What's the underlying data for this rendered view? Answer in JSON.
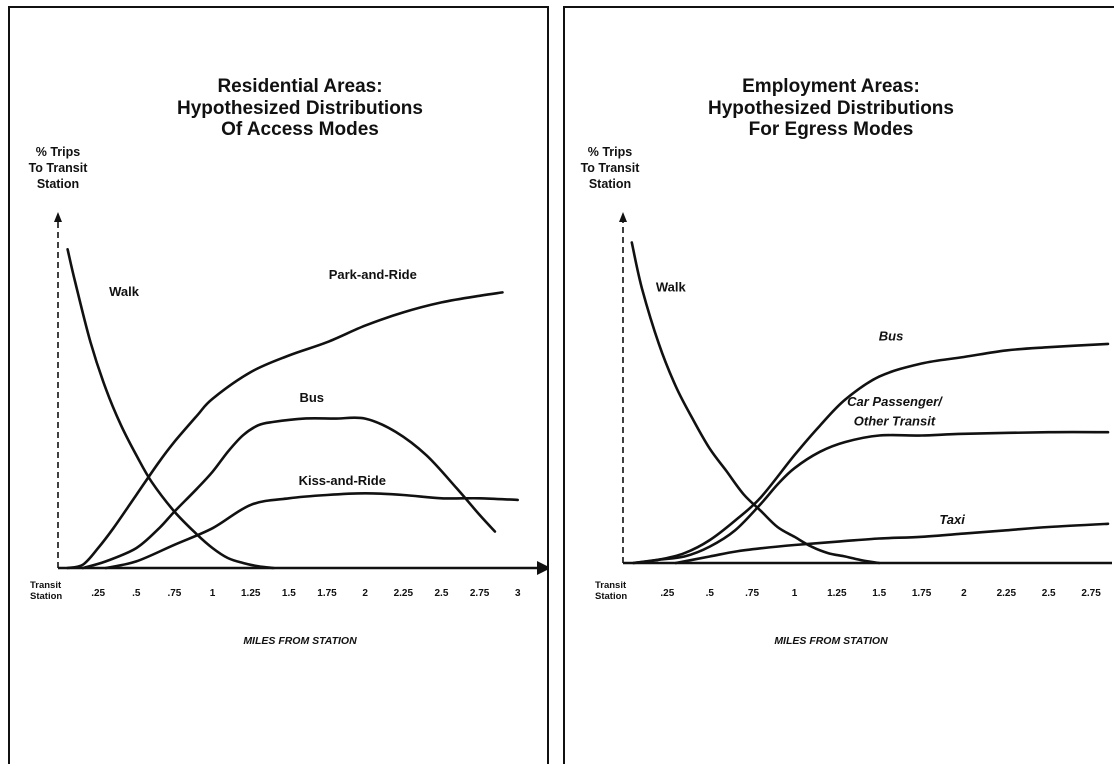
{
  "chart_data": [
    {
      "type": "line",
      "title": [
        "Residential Areas:",
        "Hypothesized Distributions",
        "Of Access Modes"
      ],
      "ylabel": [
        "% Trips",
        "To Transit",
        "Station"
      ],
      "xlabel": "MILES FROM STATION",
      "origin_label": [
        "Transit",
        "Station"
      ],
      "x_ticks": [
        0.25,
        0.5,
        0.75,
        1,
        1.25,
        1.5,
        1.75,
        2,
        2.25,
        2.5,
        2.75,
        3
      ],
      "x_tick_labels": [
        ".25",
        ".5",
        ".75",
        "1",
        "1.25",
        "1.5",
        "1.75",
        "2",
        "2.25",
        "2.5",
        "2.75",
        "3"
      ],
      "xlim": [
        0,
        3.1
      ],
      "ylim": [
        0,
        100
      ],
      "y_axis_style": "dashed",
      "grid": false,
      "legend": "labels placed next to curves",
      "series": [
        {
          "name": "Walk",
          "x": [
            0.05,
            0.1,
            0.2,
            0.3,
            0.4,
            0.5,
            0.6,
            0.75,
            0.9,
            1.0,
            1.1,
            1.2,
            1.3,
            1.4
          ],
          "y": [
            96,
            86,
            68,
            54,
            43,
            34,
            26,
            17,
            10,
            6,
            3,
            1.5,
            0.5,
            0
          ]
        },
        {
          "name": "Park-and-Ride",
          "x": [
            0.05,
            0.15,
            0.25,
            0.35,
            0.5,
            0.65,
            0.75,
            0.9,
            1.0,
            1.25,
            1.5,
            1.75,
            2.0,
            2.25,
            2.5,
            2.75,
            2.9
          ],
          "y": [
            0,
            1,
            6,
            12,
            22,
            32,
            38,
            46,
            51,
            59,
            64,
            68,
            73,
            77,
            80,
            82,
            83
          ]
        },
        {
          "name": "Bus",
          "x": [
            0.15,
            0.3,
            0.5,
            0.65,
            0.75,
            0.9,
            1.0,
            1.1,
            1.2,
            1.3,
            1.4,
            1.6,
            1.8,
            2.0,
            2.2,
            2.4,
            2.6,
            2.75,
            2.85
          ],
          "y": [
            0,
            2,
            6,
            12,
            17,
            24,
            29,
            35,
            40,
            43,
            44,
            45,
            45,
            45,
            41,
            34,
            24,
            16,
            11
          ]
        },
        {
          "name": "Kiss-and-Ride",
          "x": [
            0.3,
            0.5,
            0.75,
            1.0,
            1.25,
            1.5,
            1.75,
            2.0,
            2.25,
            2.5,
            2.75,
            3.0
          ],
          "y": [
            0,
            2,
            7,
            12,
            19,
            21,
            22,
            22.5,
            22,
            21,
            21,
            20.5
          ]
        }
      ],
      "series_labels": [
        {
          "text": "Walk",
          "x": 0.42,
          "y": 82
        },
        {
          "text": "Park-and-Ride",
          "x": 2.05,
          "y": 87
        },
        {
          "text": "Bus",
          "x": 1.65,
          "y": 50
        },
        {
          "text": "Kiss-and-Ride",
          "x": 1.85,
          "y": 25
        }
      ]
    },
    {
      "type": "line",
      "title": [
        "Employment Areas:",
        "Hypothesized Distributions",
        "For Egress Modes"
      ],
      "ylabel": [
        "% Trips",
        "To Transit",
        "Station"
      ],
      "xlabel": "MILES FROM STATION",
      "origin_label": [
        "Transit",
        "Station"
      ],
      "x_ticks": [
        0.25,
        0.5,
        0.75,
        1,
        1.25,
        1.5,
        1.75,
        2,
        2.25,
        2.5,
        2.75
      ],
      "x_tick_labels": [
        ".25",
        ".5",
        ".75",
        "1",
        "1.25",
        "1.5",
        "1.75",
        "2",
        "2.25",
        "2.5",
        "2.75"
      ],
      "xlim": [
        0,
        2.85
      ],
      "ylim": [
        0,
        100
      ],
      "y_axis_style": "dashed",
      "grid": false,
      "legend": "labels placed next to curves",
      "series": [
        {
          "name": "Walk",
          "x": [
            0.04,
            0.1,
            0.2,
            0.3,
            0.4,
            0.5,
            0.6,
            0.7,
            0.8,
            0.9,
            1.0,
            1.1,
            1.2,
            1.3,
            1.4,
            1.5
          ],
          "y": [
            98,
            84,
            67,
            54,
            44,
            35,
            28,
            21,
            16,
            11,
            8,
            5,
            3,
            2,
            0.8,
            0
          ]
        },
        {
          "name": "Bus",
          "x": [
            0.05,
            0.2,
            0.35,
            0.5,
            0.65,
            0.8,
            1.0,
            1.15,
            1.3,
            1.5,
            1.75,
            2.0,
            2.25,
            2.5,
            2.85
          ],
          "y": [
            0,
            1,
            3,
            7,
            13,
            20,
            33,
            42,
            50,
            57,
            61,
            63,
            65,
            66,
            67
          ]
        },
        {
          "name": "Car Passenger/ Other Transit",
          "x": [
            0.05,
            0.2,
            0.35,
            0.5,
            0.65,
            0.8,
            0.9,
            1.0,
            1.15,
            1.3,
            1.5,
            1.75,
            2.0,
            2.5,
            2.85
          ],
          "y": [
            0,
            1,
            2,
            5,
            10,
            18,
            24,
            29,
            34,
            37,
            39,
            39,
            39.5,
            40,
            40
          ]
        },
        {
          "name": "Taxi",
          "x": [
            0.3,
            0.5,
            0.65,
            0.8,
            1.0,
            1.25,
            1.5,
            1.75,
            2.0,
            2.25,
            2.5,
            2.85
          ],
          "y": [
            0,
            2,
            3.5,
            4.5,
            5.5,
            6.5,
            7.5,
            8,
            9,
            10,
            11,
            12
          ]
        }
      ],
      "series_labels": [
        {
          "text": "Walk",
          "x": 0.27,
          "y": 83
        },
        {
          "text": "Bus",
          "x": 1.57,
          "y": 68
        },
        {
          "text": "Car Passenger/",
          "x": 1.59,
          "y": 48
        },
        {
          "text": "Other Transit",
          "x": 1.59,
          "y": 42
        },
        {
          "text": "Taxi",
          "x": 1.93,
          "y": 12
        }
      ]
    }
  ]
}
